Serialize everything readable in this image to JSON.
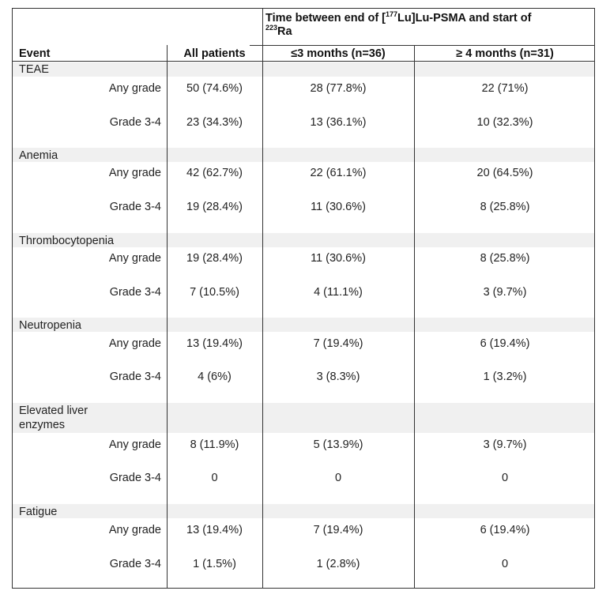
{
  "header": {
    "group_pre": "Time between end of [",
    "group_sup1": "177",
    "group_mid": "Lu]Lu-PSMA and start of",
    "group_sup2": "223",
    "group_post": "Ra",
    "event": "Event",
    "all_patients": "All patients",
    "le3": "≤3 months (n=36)",
    "ge4": "≥ 4  months (n=31)"
  },
  "sections": [
    {
      "name": "TEAE",
      "rows": [
        {
          "label": "Any grade",
          "all": "50 (74.6%)",
          "le3": "28 (77.8%)",
          "ge4": "22 (71%)"
        },
        {
          "label": "Grade 3-4",
          "all": "23 (34.3%)",
          "le3": "13 (36.1%)",
          "ge4": "10 (32.3%)"
        }
      ]
    },
    {
      "name": "Anemia",
      "rows": [
        {
          "label": "Any grade",
          "all": "42 (62.7%)",
          "le3": "22 (61.1%)",
          "ge4": "20 (64.5%)"
        },
        {
          "label": "Grade 3-4",
          "all": "19 (28.4%)",
          "le3": "11 (30.6%)",
          "ge4": "8 (25.8%)"
        }
      ]
    },
    {
      "name": "Thrombocytopenia",
      "rows": [
        {
          "label": "Any grade",
          "all": "19 (28.4%)",
          "le3": "11 (30.6%)",
          "ge4": "8 (25.8%)"
        },
        {
          "label": "Grade 3-4",
          "all": "7 (10.5%)",
          "le3": "4 (11.1%)",
          "ge4": "3 (9.7%)"
        }
      ]
    },
    {
      "name": "Neutropenia",
      "rows": [
        {
          "label": "Any grade",
          "all": "13 (19.4%)",
          "le3": "7 (19.4%)",
          "ge4": "6 (19.4%)"
        },
        {
          "label": "Grade 3-4",
          "all": "4 (6%)",
          "le3": "3 (8.3%)",
          "ge4": "1 (3.2%)"
        }
      ]
    },
    {
      "name": "Elevated liver",
      "name2": "enzymes",
      "rows": [
        {
          "label": "Any grade",
          "all": "8 (11.9%)",
          "le3": "5 (13.9%)",
          "ge4": "3 (9.7%)"
        },
        {
          "label": "Grade 3-4",
          "all": "0",
          "le3": "0",
          "ge4": "0"
        }
      ]
    },
    {
      "name": "Fatigue",
      "rows": [
        {
          "label": "Any grade",
          "all": "13 (19.4%)",
          "le3": "7 (19.4%)",
          "ge4": "6 (19.4%)"
        },
        {
          "label": "Grade 3-4",
          "all": "1 (1.5%)",
          "le3": "1 (2.8%)",
          "ge4": "0"
        }
      ]
    }
  ]
}
